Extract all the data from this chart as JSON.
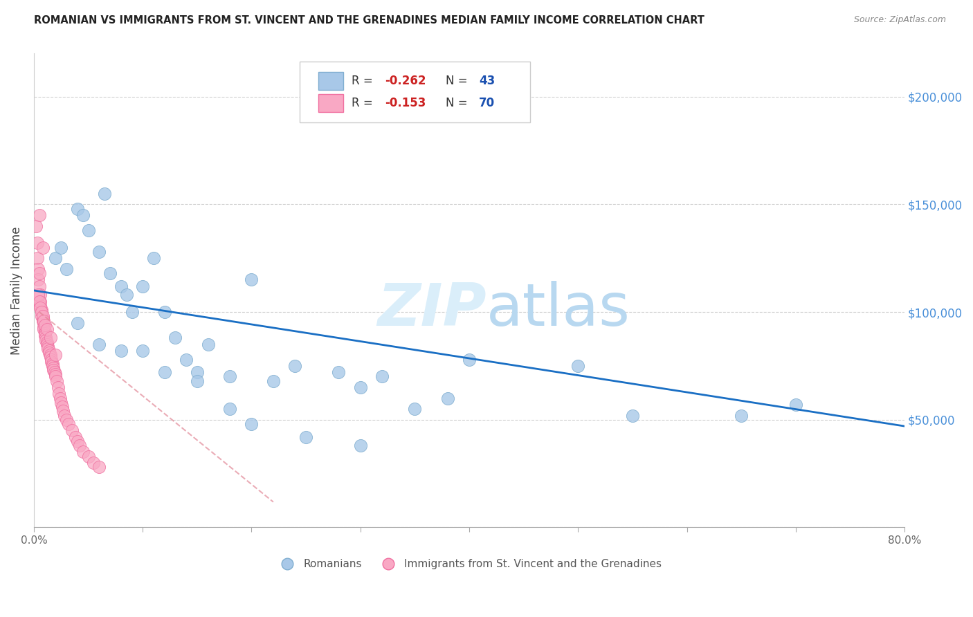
{
  "title": "ROMANIAN VS IMMIGRANTS FROM ST. VINCENT AND THE GRENADINES MEDIAN FAMILY INCOME CORRELATION CHART",
  "source": "Source: ZipAtlas.com",
  "ylabel": "Median Family Income",
  "xlim": [
    0.0,
    0.8
  ],
  "ylim": [
    0,
    220000
  ],
  "romanian_R": -0.262,
  "romanian_N": 43,
  "stvincent_R": -0.153,
  "stvincent_N": 70,
  "blue_scatter_color": "#a8c8e8",
  "blue_scatter_edge": "#80aed0",
  "pink_scatter_color": "#f9a8c4",
  "pink_scatter_edge": "#f070a0",
  "trend_blue_color": "#1a6fc4",
  "trend_pink_color": "#e08090",
  "watermark_color": "#daeefa",
  "right_axis_color": "#4a90d9",
  "rom_x": [
    0.02,
    0.025,
    0.03,
    0.04,
    0.045,
    0.05,
    0.06,
    0.065,
    0.07,
    0.08,
    0.085,
    0.09,
    0.1,
    0.11,
    0.12,
    0.13,
    0.14,
    0.15,
    0.16,
    0.18,
    0.2,
    0.22,
    0.24,
    0.28,
    0.3,
    0.32,
    0.35,
    0.38,
    0.4,
    0.7,
    0.04,
    0.06,
    0.08,
    0.1,
    0.12,
    0.15,
    0.18,
    0.2,
    0.25,
    0.3,
    0.5,
    0.55,
    0.65
  ],
  "rom_y": [
    125000,
    130000,
    120000,
    148000,
    145000,
    138000,
    128000,
    155000,
    118000,
    112000,
    108000,
    100000,
    112000,
    125000,
    100000,
    88000,
    78000,
    72000,
    85000,
    70000,
    115000,
    68000,
    75000,
    72000,
    65000,
    70000,
    55000,
    60000,
    78000,
    57000,
    95000,
    85000,
    82000,
    82000,
    72000,
    68000,
    55000,
    48000,
    42000,
    38000,
    75000,
    52000,
    52000
  ],
  "sv_x": [
    0.002,
    0.003,
    0.003,
    0.004,
    0.004,
    0.005,
    0.005,
    0.005,
    0.006,
    0.006,
    0.006,
    0.007,
    0.007,
    0.007,
    0.008,
    0.008,
    0.008,
    0.009,
    0.009,
    0.009,
    0.01,
    0.01,
    0.01,
    0.011,
    0.011,
    0.012,
    0.012,
    0.013,
    0.013,
    0.014,
    0.014,
    0.015,
    0.015,
    0.016,
    0.016,
    0.017,
    0.017,
    0.018,
    0.018,
    0.019,
    0.02,
    0.02,
    0.021,
    0.022,
    0.023,
    0.024,
    0.025,
    0.026,
    0.027,
    0.028,
    0.03,
    0.032,
    0.035,
    0.038,
    0.04,
    0.042,
    0.045,
    0.05,
    0.055,
    0.06,
    0.004,
    0.005,
    0.006,
    0.007,
    0.008,
    0.009,
    0.01,
    0.012,
    0.015,
    0.02
  ],
  "sv_y": [
    140000,
    132000,
    125000,
    120000,
    115000,
    118000,
    112000,
    145000,
    108000,
    105000,
    103000,
    101000,
    100000,
    98000,
    97000,
    96000,
    130000,
    95000,
    93000,
    92000,
    91000,
    90000,
    89000,
    88000,
    87000,
    86000,
    85000,
    84000,
    83000,
    82000,
    81000,
    80000,
    79000,
    78000,
    77000,
    76000,
    75000,
    74000,
    73000,
    72000,
    71000,
    70000,
    68000,
    65000,
    62000,
    60000,
    58000,
    56000,
    54000,
    52000,
    50000,
    48000,
    45000,
    42000,
    40000,
    38000,
    35000,
    33000,
    30000,
    28000,
    108000,
    105000,
    102000,
    100000,
    98000,
    96000,
    94000,
    92000,
    88000,
    80000
  ]
}
